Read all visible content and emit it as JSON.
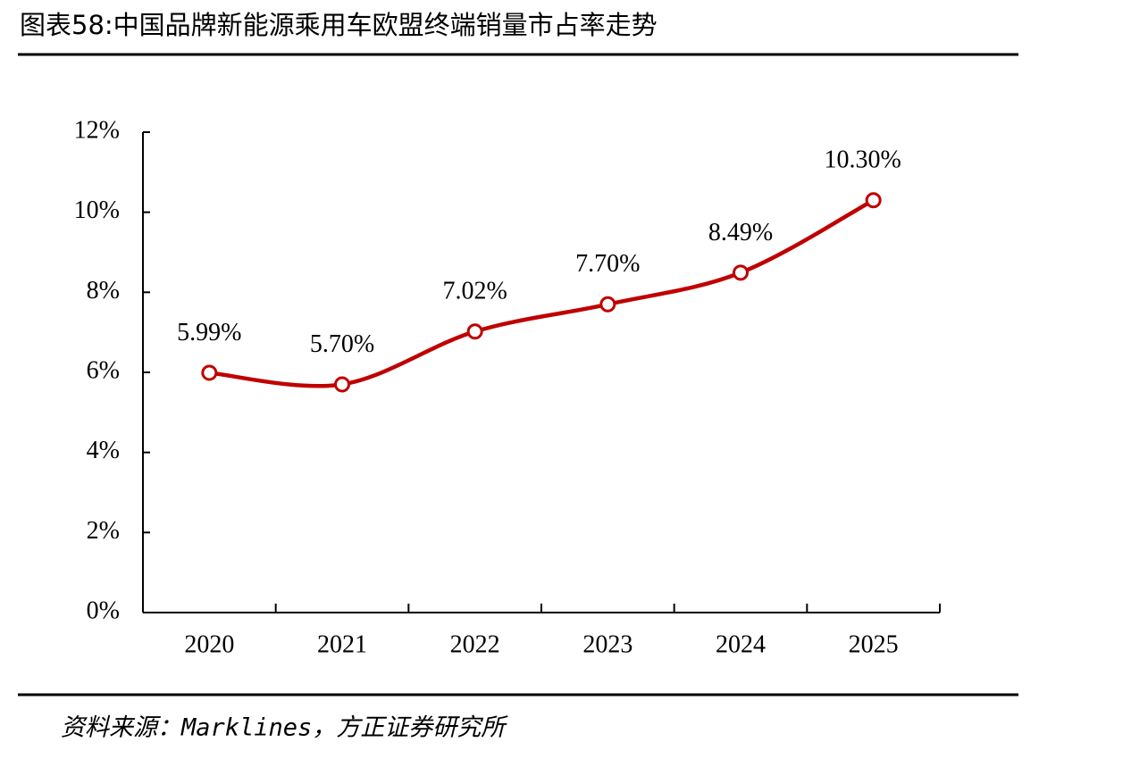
{
  "chart_data": {
    "type": "line",
    "title": "图表58:中国品牌新能源乘用车欧盟终端销量市占率走势",
    "source": "资料来源：Marklines，方正证券研究所",
    "categories": [
      "2020",
      "2021",
      "2022",
      "2023",
      "2024",
      "2025"
    ],
    "series": [
      {
        "name": "市占率",
        "color": "#c00000",
        "values": [
          5.99,
          5.7,
          7.02,
          7.7,
          8.49,
          10.3
        ],
        "value_labels": [
          "5.99%",
          "5.70%",
          "7.02%",
          "7.70%",
          "8.49%",
          "10.30%"
        ]
      }
    ],
    "ylim": [
      0,
      12
    ],
    "yticks": [
      {
        "value": 0,
        "label": "0%"
      },
      {
        "value": 2,
        "label": "2%"
      },
      {
        "value": 4,
        "label": "4%"
      },
      {
        "value": 6,
        "label": "6%"
      },
      {
        "value": 8,
        "label": "8%"
      },
      {
        "value": 10,
        "label": "10%"
      },
      {
        "value": 12,
        "label": "12%"
      }
    ],
    "grid": false
  }
}
